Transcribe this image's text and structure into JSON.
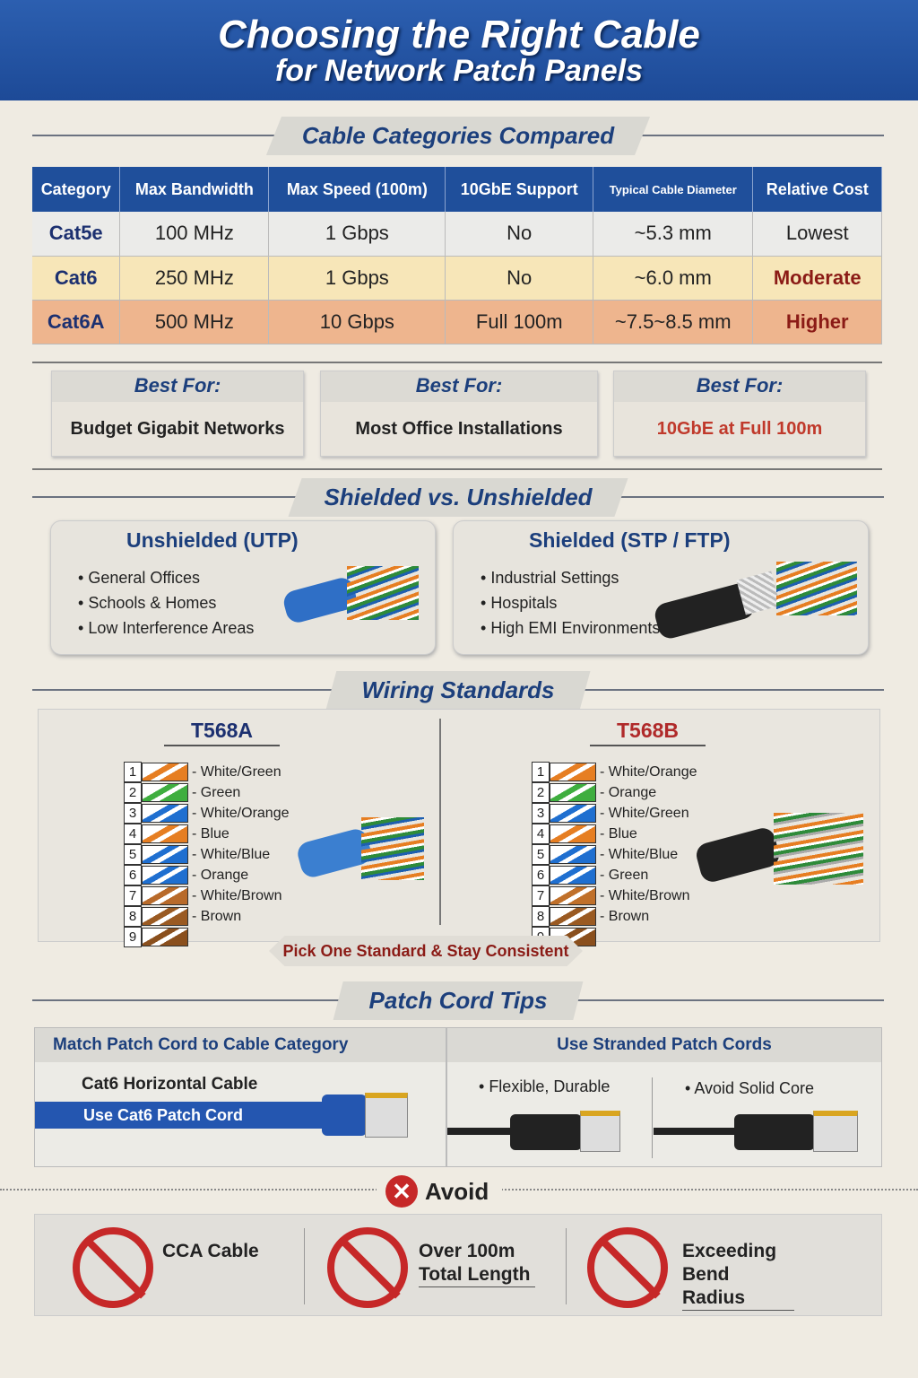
{
  "header": {
    "title": "Choosing the Right Cable",
    "subtitle": "for Network Patch Panels"
  },
  "sections": {
    "categories": "Cable Categories Compared",
    "shielding": "Shielded vs. Unshielded",
    "wiring": "Wiring Standards",
    "patch": "Patch Cord Tips",
    "avoid": "Avoid"
  },
  "table": {
    "headers": [
      "Category",
      "Max Bandwidth",
      "Max Speed (100m)",
      "10GbE Support",
      "Typical Cable Diameter",
      "Relative Cost"
    ],
    "rows": [
      [
        "Cat5e",
        "100 MHz",
        "1 Gbps",
        "No",
        "~5.3 mm",
        "Lowest"
      ],
      [
        "Cat6",
        "250 MHz",
        "1 Gbps",
        "No",
        "~6.0 mm",
        "Moderate"
      ],
      [
        "Cat6A",
        "500 MHz",
        "10 Gbps",
        "Full 100m",
        "~7.5~8.5 mm",
        "Higher"
      ]
    ]
  },
  "best_for": [
    {
      "title": "Best For:",
      "value": "Budget Gigabit Networks"
    },
    {
      "title": "Best For:",
      "value": "Most Office Installations"
    },
    {
      "title": "Best For:",
      "value": "10GbE at Full 100m"
    }
  ],
  "utp": {
    "title": "Unshielded (UTP)",
    "items": [
      "General Offices",
      "Schools & Homes",
      "Low Interference Areas"
    ]
  },
  "stp": {
    "title": "Shielded (STP / FTP)",
    "items": [
      "Industrial Settings",
      "Hospitals",
      "High EMI Environments"
    ]
  },
  "t568a": {
    "title": "T568A",
    "labels": [
      "White/Green",
      "Green",
      "White/Orange",
      "Blue",
      "White/Blue",
      "Orange",
      "White/Brown",
      "Brown"
    ]
  },
  "t568b": {
    "title": "T568B",
    "labels": [
      "White/Orange",
      "Orange",
      "White/Green",
      "Blue",
      "White/Blue",
      "Green",
      "White/Brown",
      "Brown"
    ]
  },
  "wiring_note": "Pick One Standard & Stay Consistent",
  "patch": {
    "left_title": "Match Patch Cord to Cable Category",
    "left_line1": "Cat6 Horizontal Cable",
    "left_line2": "Use Cat6 Patch Cord",
    "right_title": "Use Stranded Patch Cords",
    "right_items": [
      "Flexible, Durable",
      "Avoid Solid Core"
    ]
  },
  "avoid_items": [
    "CCA Cable",
    "Over 100m Total Length",
    "Exceeding Bend Radius"
  ],
  "colors": {
    "header": "#1f4f9b",
    "accent_red": "#c62828"
  }
}
